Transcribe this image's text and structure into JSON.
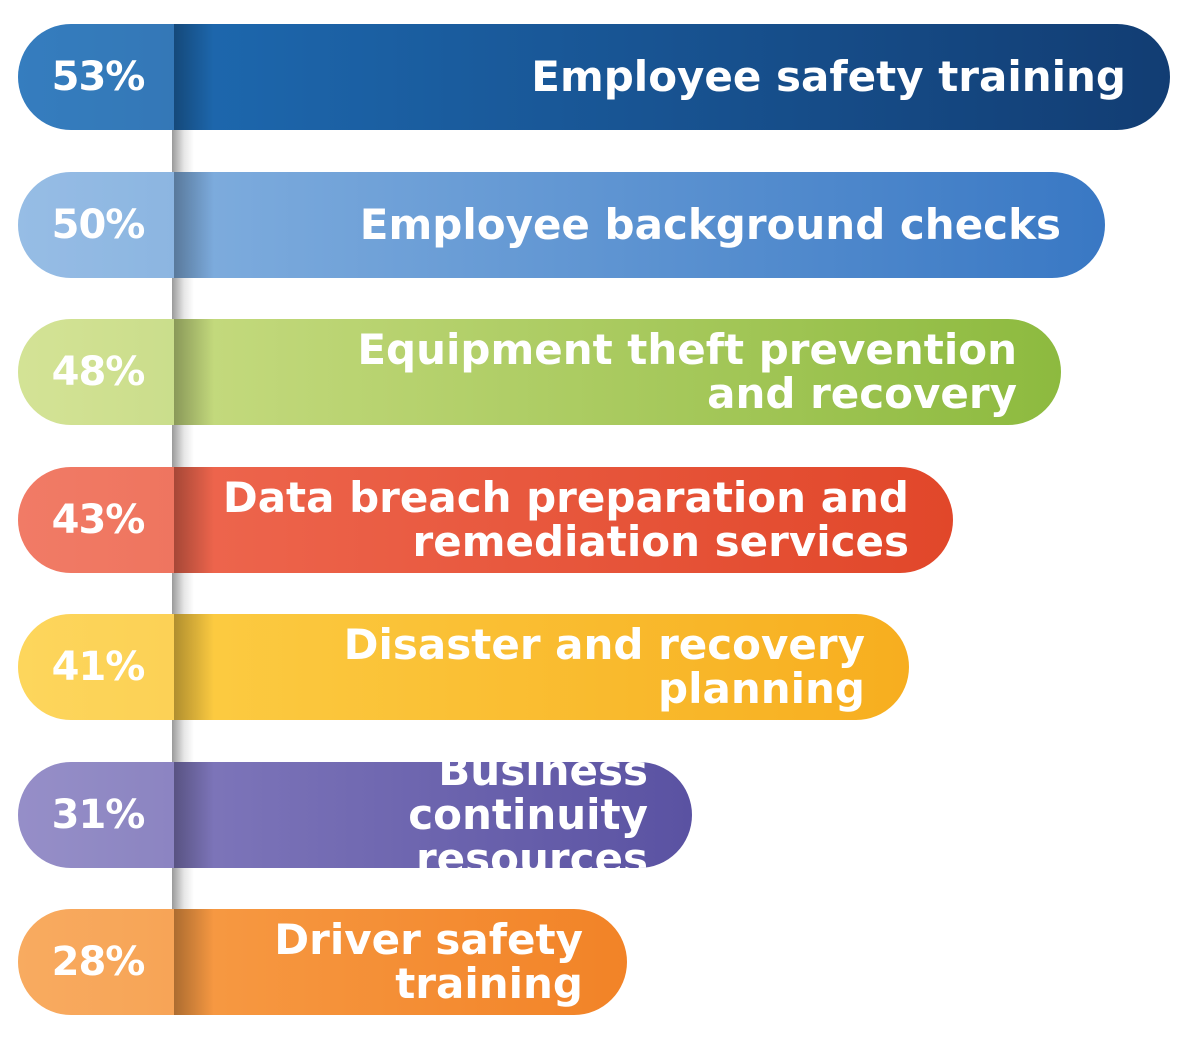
{
  "chart_data": {
    "type": "bar",
    "orientation": "horizontal",
    "categories": [
      "Employee safety training",
      "Employee background checks",
      "Equipment theft prevention\nand recovery",
      "Data breach preparation and\nremediation services",
      "Disaster and recovery planning",
      "Business continuity\nresources",
      "Driver safety training"
    ],
    "values": [
      53,
      50,
      48,
      43,
      41,
      31,
      28
    ],
    "value_labels": [
      "53%",
      "50%",
      "48%",
      "43%",
      "41%",
      "31%",
      "28%"
    ],
    "colors": [
      [
        "#1f6fb8",
        "#123d73"
      ],
      [
        "#8bb6e2",
        "#3978c4"
      ],
      [
        "#cfe08a",
        "#8dba3f"
      ],
      [
        "#f06c55",
        "#e1472a"
      ],
      [
        "#fdd24a",
        "#f7ae1f"
      ],
      [
        "#8a82c2",
        "#5a52a2"
      ],
      [
        "#f8a24e",
        "#f28327"
      ]
    ],
    "unit": "%"
  }
}
